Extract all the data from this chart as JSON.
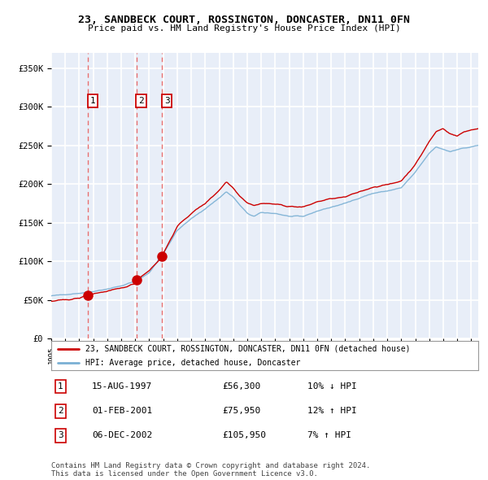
{
  "title": "23, SANDBECK COURT, ROSSINGTON, DONCASTER, DN11 0FN",
  "subtitle": "Price paid vs. HM Land Registry's House Price Index (HPI)",
  "xlim_start": 1995.0,
  "xlim_end": 2025.5,
  "ylim": [
    0,
    370000
  ],
  "yticks": [
    0,
    50000,
    100000,
    150000,
    200000,
    250000,
    300000,
    350000
  ],
  "ytick_labels": [
    "£0",
    "£50K",
    "£100K",
    "£150K",
    "£200K",
    "£250K",
    "£300K",
    "£350K"
  ],
  "transactions": [
    {
      "year": 1997.62,
      "price": 56300,
      "label": "1"
    },
    {
      "year": 2001.08,
      "price": 75950,
      "label": "2"
    },
    {
      "year": 2002.92,
      "price": 105950,
      "label": "3"
    }
  ],
  "transaction_table": [
    {
      "num": "1",
      "date": "15-AUG-1997",
      "price": "£56,300",
      "hpi": "10% ↓ HPI"
    },
    {
      "num": "2",
      "date": "01-FEB-2001",
      "price": "£75,950",
      "hpi": "12% ↑ HPI"
    },
    {
      "num": "3",
      "date": "06-DEC-2002",
      "price": "£105,950",
      "hpi": "7% ↑ HPI"
    }
  ],
  "red_line_color": "#cc0000",
  "blue_line_color": "#7ab0d4",
  "dashed_line_color": "#e87070",
  "background_color": "#e8eef8",
  "grid_color": "#ffffff",
  "box_outline_color": "#cc0000",
  "footer_text": "Contains HM Land Registry data © Crown copyright and database right 2024.\nThis data is licensed under the Open Government Licence v3.0."
}
